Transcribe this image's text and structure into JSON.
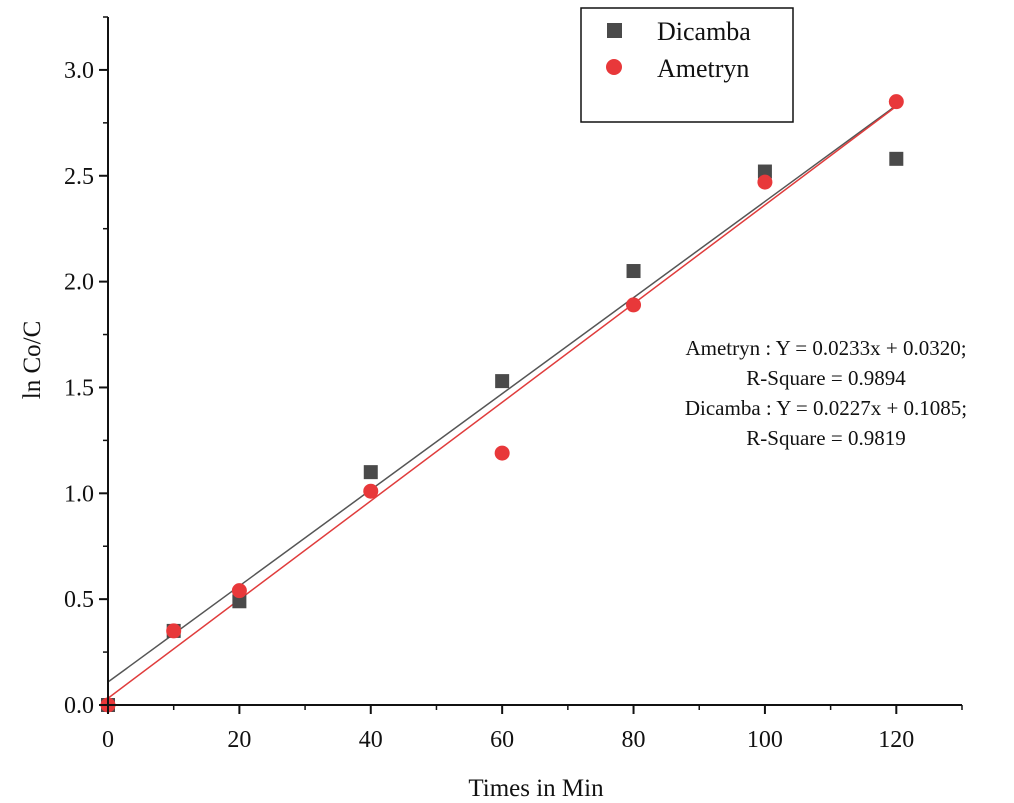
{
  "chart_data": {
    "type": "scatter",
    "title": "",
    "xlabel": "Times in Min",
    "ylabel": "ln Co/C",
    "xlim": [
      0,
      130
    ],
    "ylim": [
      0,
      3.25
    ],
    "x_ticks": [
      0,
      20,
      40,
      60,
      80,
      100,
      120
    ],
    "x_tick_labels": [
      "0",
      "20",
      "40",
      "60",
      "80",
      "100",
      "120"
    ],
    "x_minor_ticks": [
      10,
      30,
      50,
      70,
      90,
      110,
      130
    ],
    "y_ticks": [
      0,
      0.5,
      1.0,
      1.5,
      2.0,
      2.5,
      3.0
    ],
    "y_tick_labels": [
      "0.0",
      "0.5",
      "1.0",
      "1.5",
      "2.0",
      "2.5",
      "3.0"
    ],
    "y_minor_ticks": [
      0.25,
      0.75,
      1.25,
      1.75,
      2.25,
      2.75,
      3.25
    ],
    "grid": false,
    "legend_position": "top-right",
    "series": [
      {
        "name": "Dicamba",
        "marker": "square",
        "color": "#4a4a4a",
        "x": [
          0,
          10,
          20,
          40,
          60,
          80,
          100,
          120
        ],
        "y": [
          0,
          0.35,
          0.49,
          1.1,
          1.53,
          2.05,
          2.52,
          2.58
        ],
        "fit": {
          "slope": 0.0227,
          "intercept": 0.1085,
          "x_range": [
            0,
            120
          ],
          "color": "#555555"
        }
      },
      {
        "name": "Ametryn",
        "marker": "circle",
        "color": "#e8383a",
        "x": [
          0,
          10,
          20,
          40,
          60,
          80,
          100,
          120
        ],
        "y": [
          0,
          0.35,
          0.54,
          1.01,
          1.19,
          1.89,
          2.47,
          2.85
        ],
        "fit": {
          "slope": 0.0233,
          "intercept": 0.032,
          "x_range": [
            0,
            120
          ],
          "color": "#e03c3c"
        }
      }
    ],
    "annotations": [
      "Ametryn : Y = 0.0233x + 0.0320;",
      "R-Square = 0.9894",
      "Dicamba : Y = 0.0227x + 0.1085;",
      "R-Square = 0.9819"
    ]
  }
}
